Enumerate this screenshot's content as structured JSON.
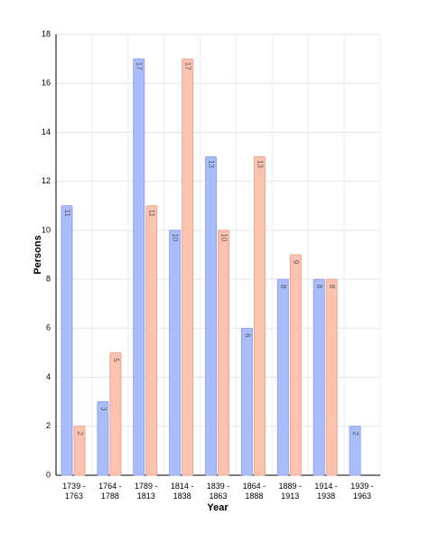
{
  "chart_data": {
    "type": "bar",
    "x_label": "Year",
    "y_label": "Persons",
    "categories": [
      "1739 - 1763",
      "1764 - 1788",
      "1789 - 1813",
      "1814 - 1838",
      "1839 - 1863",
      "1864 - 1888",
      "1889 - 1913",
      "1914 - 1938",
      "1939 - 1963"
    ],
    "series": [
      {
        "color": "#aabdfb",
        "values": [
          11,
          3,
          17,
          10,
          13,
          6,
          8,
          8,
          2
        ]
      },
      {
        "color": "#fcc3b0",
        "values": [
          2,
          5,
          11,
          17,
          10,
          13,
          9,
          8,
          null
        ]
      }
    ],
    "ylim": [
      0,
      18
    ],
    "yticks": [
      0,
      2,
      4,
      6,
      8,
      10,
      12,
      14,
      16,
      18
    ],
    "grid": true
  }
}
